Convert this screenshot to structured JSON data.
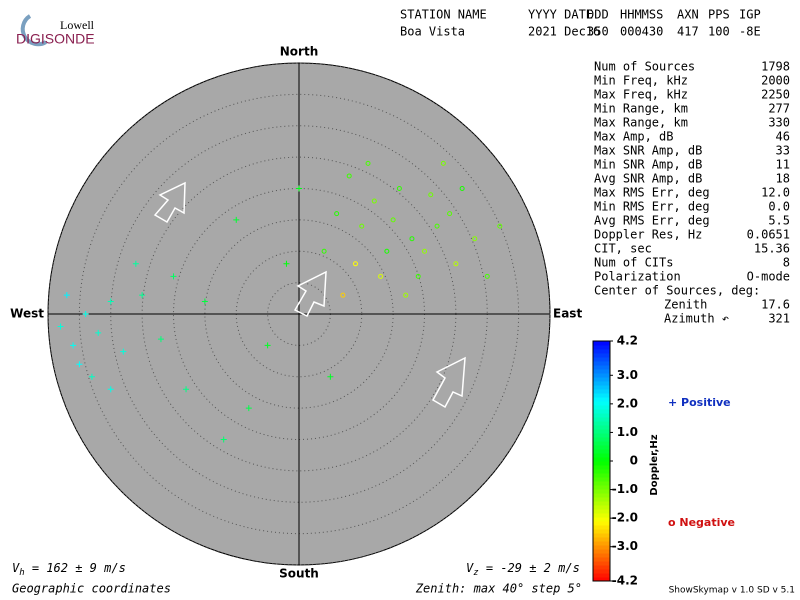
{
  "logo": {
    "top": "Lowell",
    "bottom": "DIGISONDE"
  },
  "header": {
    "labels": [
      "STATION NAME",
      "YYYY DATE",
      "DDD",
      "HHMMSS",
      "AXN",
      "PPS",
      "IGP"
    ],
    "values": [
      "Boa Vista",
      "2021 Dec16",
      "350",
      "000430",
      "417",
      "100",
      "-8E"
    ]
  },
  "skymap": {
    "directions": {
      "north": "North",
      "south": "South",
      "west": "West",
      "east": "East"
    },
    "rlim": [
      0,
      40
    ],
    "rings": [
      5,
      10,
      15,
      20,
      25,
      30,
      35,
      40
    ],
    "points": {
      "x": [
        8,
        12,
        15,
        18,
        20,
        22,
        25,
        14,
        10,
        16,
        24,
        28,
        19,
        13,
        6,
        30,
        21,
        17,
        26,
        9,
        4,
        32,
        11,
        23,
        7,
        -38,
        -36,
        -34,
        -35,
        -32,
        -30,
        -28,
        -37,
        -33,
        -25,
        -22,
        -20,
        -15,
        -18,
        -12,
        -8,
        -5,
        -10,
        0,
        -2,
        5,
        -26,
        -30
      ],
      "y": [
        22,
        18,
        15,
        12,
        10,
        14,
        8,
        10,
        14,
        20,
        16,
        12,
        6,
        6,
        16,
        6,
        19,
        3,
        20,
        8,
        10,
        14,
        24,
        24,
        3,
        -2,
        -5,
        0,
        -8,
        -3,
        2,
        -6,
        3,
        -10,
        3,
        -4,
        6,
        2,
        -12,
        -20,
        -15,
        -5,
        15,
        20,
        8,
        -10,
        8,
        -12
      ],
      "doppler": [
        -0.5,
        -1,
        -0.8,
        -0.3,
        -1.2,
        -0.6,
        -1.5,
        -0.2,
        -0.9,
        -0.4,
        -0.7,
        -1.1,
        -0.5,
        -1.8,
        -0.3,
        -0.6,
        -0.9,
        -1.3,
        -0.2,
        -2.1,
        -0.4,
        -0.8,
        -0.6,
        -1,
        -2.5,
        1.8,
        2,
        1.9,
        2.1,
        1.7,
        1.5,
        1.8,
        2.2,
        1.6,
        1.2,
        1,
        0.8,
        0.5,
        1.1,
        0.9,
        0.6,
        0.3,
        0.4,
        0.2,
        0.1,
        0.3,
        1.3,
        1.9
      ]
    }
  },
  "stats": [
    [
      "Num of Sources",
      "1798"
    ],
    [
      "Min Freq, kHz",
      "2000"
    ],
    [
      "Max Freq, kHz",
      "2250"
    ],
    [
      "Min Range, km",
      "277"
    ],
    [
      "Max Range, km",
      "330"
    ],
    [
      "Max Amp, dB",
      "46"
    ],
    [
      "Max SNR Amp, dB",
      "33"
    ],
    [
      "Min SNR Amp, dB",
      "11"
    ],
    [
      "Avg SNR Amp, dB",
      "18"
    ],
    [
      "Max RMS Err, deg",
      "12.0"
    ],
    [
      "Min RMS Err, deg",
      "0.0"
    ],
    [
      "Avg RMS Err, deg",
      "5.5"
    ],
    [
      "Doppler Res, Hz",
      "0.0651"
    ],
    [
      "CIT, sec",
      "15.36"
    ],
    [
      "Num of CITs",
      "8"
    ],
    [
      "Polarization",
      "O-mode"
    ]
  ],
  "center": {
    "title": "Center of Sources, deg:",
    "rows": [
      [
        "Zenith",
        "17.6"
      ],
      [
        "Azimuth ↶",
        "321"
      ]
    ]
  },
  "colorbar": {
    "label": "Doppler,Hz",
    "lim": [
      -4.2,
      4.2
    ],
    "ticks": [
      4.2,
      {
        "value": 3,
        "label": "3.0"
      },
      {
        "value": 2,
        "label": "2.0"
      },
      {
        "value": 1,
        "label": "1.0"
      },
      0,
      {
        "value": -1,
        "label": "-1.0"
      },
      {
        "value": -2,
        "label": "-2.0"
      },
      {
        "value": -3,
        "label": "-3.0"
      },
      -4.2
    ]
  },
  "legend": {
    "positive": "+ Positive",
    "negative": "o Negative"
  },
  "footer": {
    "vh": {
      "symbol": "V",
      "sub": "h",
      "text": " = 162 ± 9 m/s"
    },
    "vz": {
      "symbol": "V",
      "sub": "z",
      "text": " = -29 ± 2 m/s"
    },
    "coords": "Geographic coordinates",
    "zenith": "Zenith: max 40°  step 5°",
    "version": "ShowSkymap v 1.0   SD v 5.1"
  }
}
